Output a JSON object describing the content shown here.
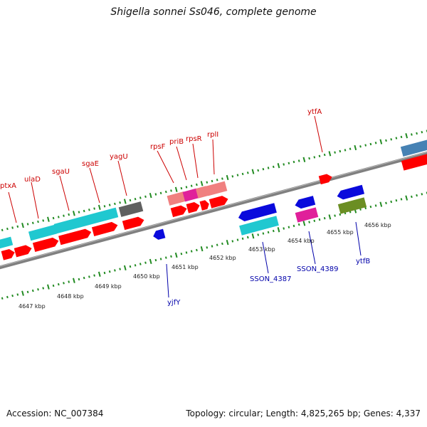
{
  "title": "Shigella sonnei Ss046, complete genome",
  "footer": {
    "accession": "Accession: NC_007384",
    "topology": "Topology: circular; Length: 4,825,265 bp; Genes: 4,337"
  },
  "colors": {
    "backbone": "#808080",
    "forward_tick": "#228B22",
    "label_top": "#CC0000",
    "label_bottom": "#0000AA",
    "red": "#FF0000",
    "cyan": "#20C8D0",
    "gray": "#606060",
    "salmon": "#F08080",
    "magenta": "#E0209A",
    "blue": "#0A0ADC",
    "olive": "#6B8E23",
    "steelblue": "#4682B4"
  },
  "scale_labels": [
    "4647 kbp",
    "4648 kbp",
    "4649 kbp",
    "4650 kbp",
    "4651 kbp",
    "4652 kbp",
    "4653 kbp",
    "4654 kbp",
    "4655 kbp",
    "4656 kbp"
  ],
  "top_gene_labels": [
    "ptxA",
    "ulaD",
    "sgaU",
    "sgaE",
    "yagU",
    "rpsF",
    "priB",
    "rpsR",
    "rplI",
    "ytfA"
  ],
  "bottom_gene_labels": [
    "yjfY",
    "SSON_4387",
    "SSON_4389",
    "ytfB"
  ]
}
